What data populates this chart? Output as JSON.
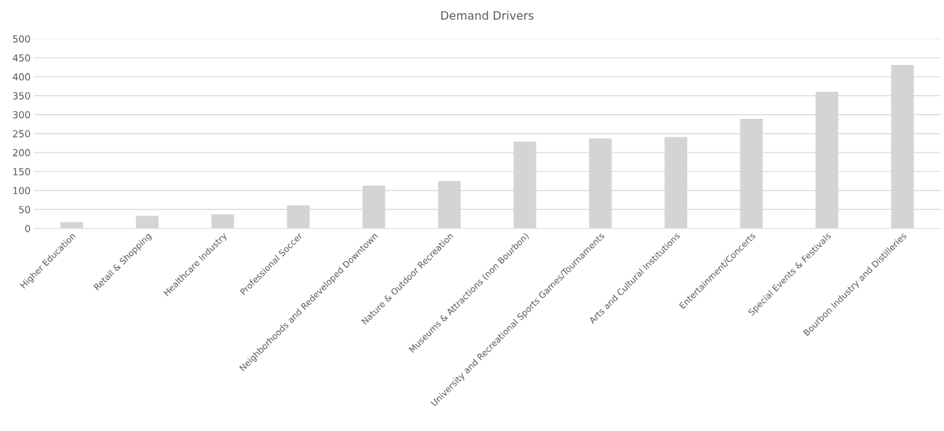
{
  "chart_data": {
    "type": "bar",
    "title": "Demand Drivers",
    "categories": [
      "Higher Education",
      "Retail & Shopping",
      "Healthcare Industry",
      "Professional Soccer",
      "Neighborhoods and Redeveloped Downtown",
      "Nature & Outdoor Recreation",
      "Museums & Attractions (non Bourbon)",
      "University and Recreational Sports Games/Tournaments",
      "Arts and Cultural Institutions",
      "Entertainment/Concerts",
      "Special Events & Festivals",
      "Bourbon Industry and Distilleries"
    ],
    "values": [
      17,
      33,
      37,
      61,
      113,
      125,
      229,
      237,
      241,
      289,
      360,
      431
    ],
    "color": "#d3d4d6",
    "ylim": [
      0,
      500
    ],
    "yticks": [
      0,
      50,
      100,
      150,
      200,
      250,
      300,
      350,
      400,
      450,
      500
    ],
    "grid": "y",
    "legend": false
  }
}
